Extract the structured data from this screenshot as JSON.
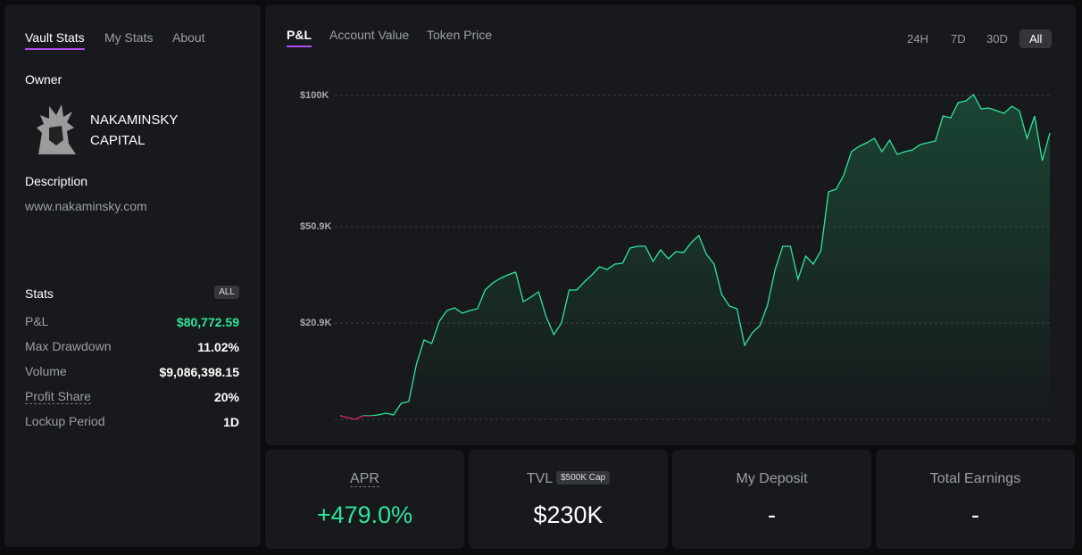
{
  "sidebar": {
    "tabs": [
      "Vault Stats",
      "My Stats",
      "About"
    ],
    "owner_heading": "Owner",
    "owner_name": "NAKAMINSKY CAPITAL",
    "description_heading": "Description",
    "description": "www.nakaminsky.com",
    "stats_heading": "Stats",
    "stats_filter": "ALL",
    "stats": [
      {
        "label": "P&L",
        "value": "$80,772.59"
      },
      {
        "label": "Max Drawdown",
        "value": "11.02%"
      },
      {
        "label": "Volume",
        "value": "$9,086,398.15"
      },
      {
        "label": "Profit Share",
        "value": "20%"
      },
      {
        "label": "Lockup Period",
        "value": "1D"
      }
    ]
  },
  "chart_tabs": [
    "P&L",
    "Account Value",
    "Token Price"
  ],
  "ranges": [
    "24H",
    "7D",
    "30D",
    "All"
  ],
  "chart_data": {
    "type": "line",
    "color": "#2ee59a",
    "negative_color": "#e0245e",
    "values": [
      0,
      -400,
      -800,
      0,
      0,
      200,
      610,
      200,
      2820,
      3220,
      11660,
      17080,
      16280,
      21460,
      24790,
      25620,
      23960,
      24790,
      25340,
      31180,
      33400,
      34790,
      35900,
      36730,
      27570,
      28960,
      30620,
      22840,
      18290,
      20900,
      31180,
      31180,
      33680,
      35900,
      38400,
      37570,
      39230,
      39510,
      44230,
      44790,
      44790,
      40070,
      43680,
      40900,
      43120,
      42840,
      45900,
      48120,
      42290,
      39230,
      29790,
      26180,
      25340,
      15880,
      18690,
      20300,
      26460,
      37570,
      44790,
      44790,
      34510,
      41730,
      39230,
      43400,
      63930,
      64930,
      70270,
      78960,
      80960,
      82300,
      83970,
      78960,
      83300,
      77960,
      78960,
      79630,
      81630,
      82300,
      82970,
      92320,
      91650,
      97330,
      97990,
      100330,
      95000,
      95320,
      94320,
      93320,
      95990,
      94320,
      83970,
      92320,
      75620,
      85970
    ],
    "ylim": [
      -800,
      104000
    ],
    "yticks": [
      {
        "value": 20900,
        "label": "$20.9K"
      },
      {
        "value": 50900,
        "label": "$50.9K"
      },
      {
        "value": 100000,
        "label": "$100K"
      }
    ],
    "grid": true
  },
  "cards": [
    {
      "label": "APR",
      "value": "+479.0%"
    },
    {
      "label": "TVL",
      "badge": "$500K Cap",
      "value": "$230K"
    },
    {
      "label": "My Deposit",
      "value": "-"
    },
    {
      "label": "Total Earnings",
      "value": "-"
    }
  ]
}
